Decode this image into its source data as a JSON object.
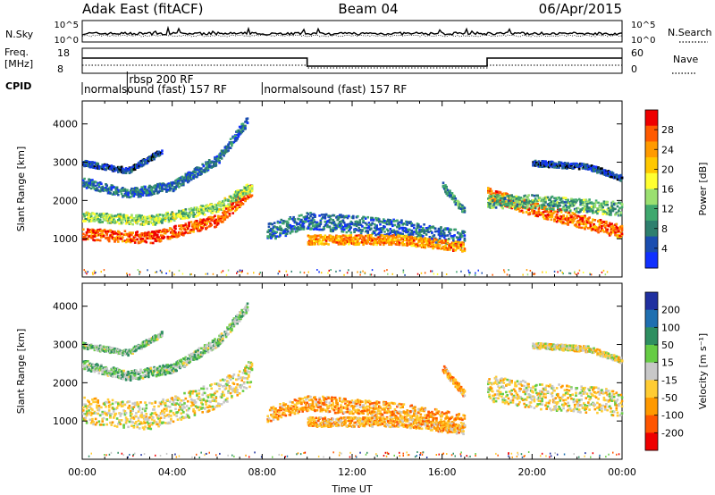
{
  "header": {
    "station": "Adak East (fitACF)",
    "beam": "Beam 04",
    "date": "06/Apr/2015"
  },
  "nsky": {
    "label": "N.Sky",
    "right_label": "N.Search",
    "ticks_left": [
      "10^5",
      "10^0"
    ],
    "ticks_right": [
      "10^5",
      "10^0"
    ]
  },
  "freq": {
    "label_line1": "Freq.",
    "label_line2": "[MHz]",
    "ticks_left": [
      "18",
      "8"
    ],
    "ticks_right": [
      "60",
      "0"
    ],
    "right_label": "Nave",
    "steps": [
      [
        0,
        0
      ],
      [
        2,
        0
      ],
      [
        10,
        1
      ],
      [
        18,
        0
      ],
      [
        24,
        0
      ]
    ]
  },
  "cpid": {
    "label": "CPID",
    "segments": [
      {
        "start": 0,
        "text": "normalsound (fast) 157 RF",
        "level": "low"
      },
      {
        "start": 2,
        "text": "rbsp 200 RF",
        "level": "high"
      },
      {
        "start": 8,
        "text": "normalsound (fast) 157 RF",
        "level": "low"
      }
    ]
  },
  "chart_data": [
    {
      "type": "heatmap",
      "name_hidden": "power-panel",
      "ylabel": "Slant Range [km]",
      "ylim": [
        0,
        4600
      ],
      "yticks": [
        1000,
        2000,
        3000,
        4000
      ],
      "xlim": [
        0,
        24
      ],
      "xticks": [
        "00:00",
        "04:00",
        "08:00",
        "12:00",
        "16:00",
        "20:00",
        "00:00"
      ],
      "colorbar": {
        "label": "Power [dB]",
        "ticks": [
          "28",
          "24",
          "20",
          "16",
          "12",
          "8",
          "4"
        ],
        "colors": [
          "#ee0000",
          "#ff5a00",
          "#ff9a00",
          "#ffc800",
          "#ffff30",
          "#9be070",
          "#3fa86e",
          "#2e7f6e",
          "#1a4db0",
          "#1030ff"
        ]
      },
      "bands": [
        {
          "x": [
            0,
            3,
            6,
            7.5
          ],
          "y": [
            1150,
            1050,
            1500,
            2300
          ],
          "width": 300,
          "level": 0.85
        },
        {
          "x": [
            0,
            3,
            6,
            7.5
          ],
          "y": [
            1600,
            1500,
            1850,
            2400
          ],
          "width": 250,
          "level": 0.45
        },
        {
          "x": [
            0,
            2,
            4,
            6,
            7.3
          ],
          "y": [
            2500,
            2200,
            2400,
            3100,
            4100
          ],
          "width": 250,
          "level": 0.2
        },
        {
          "x": [
            0,
            2,
            3.5
          ],
          "y": [
            3000,
            2800,
            3300
          ],
          "width": 150,
          "level": 0.1
        },
        {
          "x": [
            8.2,
            10,
            14,
            17
          ],
          "y": [
            1200,
            1500,
            1300,
            1000
          ],
          "width": 450,
          "level": 0.2
        },
        {
          "x": [
            10,
            14,
            17
          ],
          "y": [
            1000,
            1000,
            800
          ],
          "width": 250,
          "level": 0.75
        },
        {
          "x": [
            16,
            17
          ],
          "y": [
            2400,
            1700
          ],
          "width": 200,
          "level": 0.3
        },
        {
          "x": [
            18,
            20,
            24
          ],
          "y": [
            2200,
            1800,
            1200
          ],
          "width": 350,
          "level": 0.8
        },
        {
          "x": [
            18,
            20,
            24
          ],
          "y": [
            2000,
            2000,
            1800
          ],
          "width": 350,
          "level": 0.35
        },
        {
          "x": [
            20,
            22.5,
            24
          ],
          "y": [
            3000,
            2900,
            2600
          ],
          "width": 150,
          "level": 0.1
        }
      ]
    },
    {
      "type": "heatmap",
      "name_hidden": "velocity-panel",
      "ylabel": "Slant Range [km]",
      "ylim": [
        0,
        4600
      ],
      "yticks": [
        1000,
        2000,
        3000,
        4000
      ],
      "xlim": [
        0,
        24
      ],
      "xlabel": "Time UT",
      "xticks": [
        "00:00",
        "04:00",
        "08:00",
        "12:00",
        "16:00",
        "20:00",
        "00:00"
      ],
      "colorbar": {
        "label": "Velocity [m s⁻¹]",
        "ticks": [
          "200",
          "100",
          "50",
          "15",
          "-15",
          "-50",
          "-100",
          "-200"
        ],
        "colors": [
          "#2030a0",
          "#1f6fb0",
          "#2e8e60",
          "#66cc44",
          "#c8c8c8",
          "#ffcc33",
          "#ff9900",
          "#ff5500",
          "#ee0000"
        ]
      },
      "bands": [
        {
          "x": [
            0,
            3,
            6,
            7.5
          ],
          "y": [
            1300,
            1150,
            1700,
            2300
          ],
          "width": 700,
          "level": 0.45
        },
        {
          "x": [
            0,
            2,
            4,
            6,
            7.3
          ],
          "y": [
            2500,
            2200,
            2400,
            3100,
            4000
          ],
          "width": 250,
          "level": 0.6
        },
        {
          "x": [
            0,
            2,
            3.5
          ],
          "y": [
            3000,
            2800,
            3300
          ],
          "width": 150,
          "level": 0.6
        },
        {
          "x": [
            8.2,
            10,
            14,
            17
          ],
          "y": [
            1200,
            1500,
            1300,
            1000
          ],
          "width": 400,
          "level": 0.3
        },
        {
          "x": [
            10,
            14,
            17
          ],
          "y": [
            1000,
            1000,
            800
          ],
          "width": 250,
          "level": 0.35
        },
        {
          "x": [
            16,
            17
          ],
          "y": [
            2400,
            1700
          ],
          "width": 200,
          "level": 0.3
        },
        {
          "x": [
            18,
            20,
            24
          ],
          "y": [
            1900,
            1700,
            1500
          ],
          "width": 700,
          "level": 0.45
        },
        {
          "x": [
            20,
            22.5,
            24
          ],
          "y": [
            3000,
            2900,
            2600
          ],
          "width": 150,
          "level": 0.45
        }
      ]
    }
  ]
}
